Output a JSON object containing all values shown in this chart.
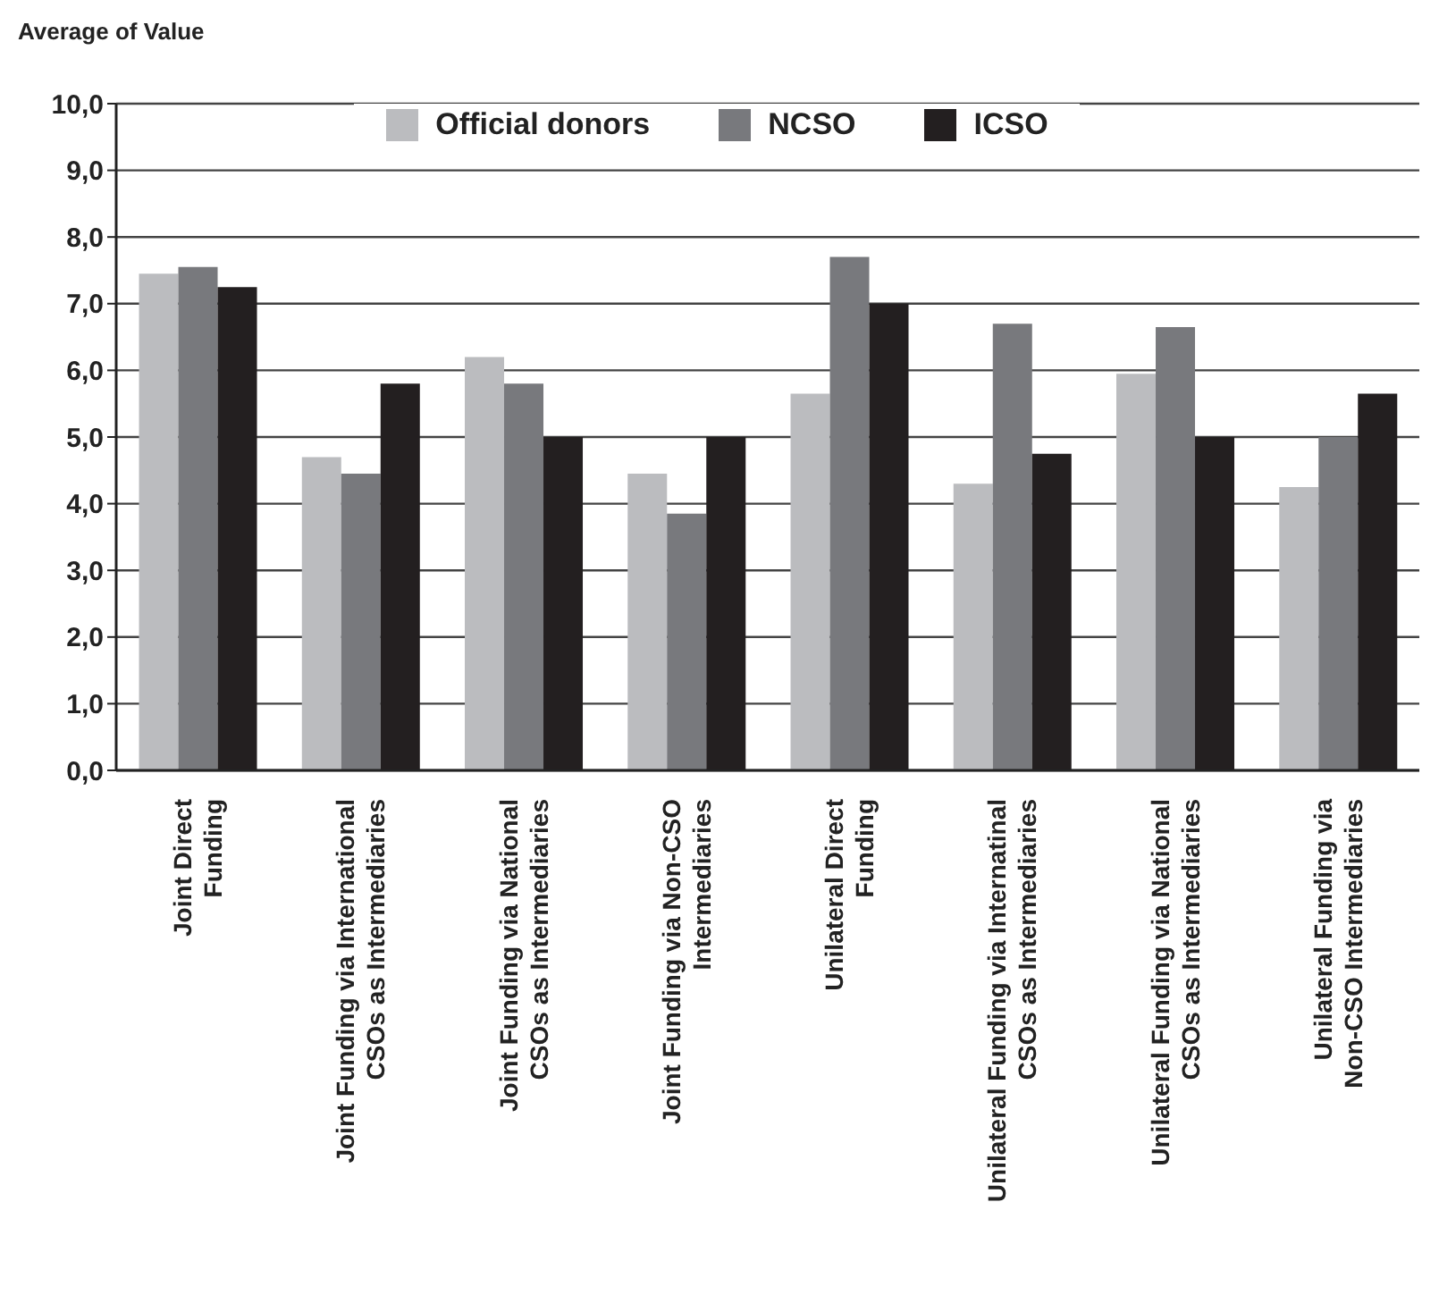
{
  "chart_data": {
    "type": "bar",
    "ylabel": "Average of Value",
    "categories": [
      "Joint Direct\nFunding",
      "Joint Funding via International\nCSOs as Intermediaries",
      "Joint Funding via National\nCSOs as Intermediaries",
      "Joint Funding via Non-CSO\nIntermediaries",
      "Unilateral Direct\nFunding",
      "Unilateral Funding via Internatinal\nCSOs as Intermediaries",
      "Unilateral Funding via National\nCSOs as Intermediaries",
      "Unilateral Funding via\nNon-CSO Intermediaries"
    ],
    "series": [
      {
        "name": "Official donors",
        "color": "#bbbcbf",
        "values": [
          7.45,
          4.7,
          6.2,
          4.45,
          5.65,
          4.3,
          5.95,
          4.25
        ]
      },
      {
        "name": "NCSO",
        "color": "#78797d",
        "values": [
          7.55,
          4.45,
          5.8,
          3.85,
          7.7,
          6.7,
          6.65,
          5.0
        ]
      },
      {
        "name": "ICSO",
        "color": "#231f20",
        "values": [
          7.25,
          5.8,
          5.0,
          5.0,
          7.0,
          4.75,
          5.0,
          5.65
        ]
      }
    ],
    "ylim": [
      0,
      10
    ],
    "yticks": [
      {
        "value": 0,
        "label": "0,0"
      },
      {
        "value": 1,
        "label": "1,0"
      },
      {
        "value": 2,
        "label": "2,0"
      },
      {
        "value": 3,
        "label": "3,0"
      },
      {
        "value": 4,
        "label": "4,0"
      },
      {
        "value": 5,
        "label": "5,0"
      },
      {
        "value": 6,
        "label": "6,0"
      },
      {
        "value": 7,
        "label": "7,0"
      },
      {
        "value": 8,
        "label": "8,0"
      },
      {
        "value": 9,
        "label": "9,0"
      },
      {
        "value": 10,
        "label": "10,0"
      }
    ],
    "grid": "y",
    "legend": "top"
  }
}
